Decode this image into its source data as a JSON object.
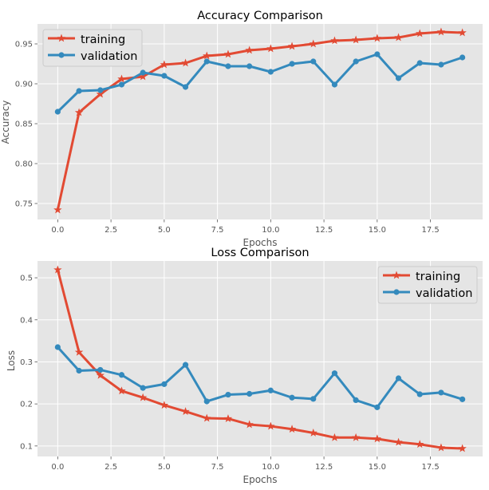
{
  "colors": {
    "training": "#e24a33",
    "validation": "#348abd"
  },
  "chart_data": [
    {
      "type": "line",
      "title": "Accuracy Comparison",
      "xlabel": "Epochs",
      "ylabel": "Accuracy",
      "xlim": [
        -0.95,
        19.95
      ],
      "ylim": [
        0.73,
        0.975
      ],
      "xticks": [
        0,
        2.5,
        5,
        7.5,
        10,
        12.5,
        15,
        17.5
      ],
      "xtick_labels": [
        "0.0",
        "2.5",
        "5.0",
        "7.5",
        "10.0",
        "12.5",
        "15.0",
        "17.5"
      ],
      "yticks": [
        0.75,
        0.8,
        0.85,
        0.9,
        0.95
      ],
      "ytick_labels": [
        "0.75",
        "0.80",
        "0.85",
        "0.90",
        "0.95"
      ],
      "grid": true,
      "legend_position": "upper-left",
      "x": [
        0,
        1,
        2,
        3,
        4,
        5,
        6,
        7,
        8,
        9,
        10,
        11,
        12,
        13,
        14,
        15,
        16,
        17,
        18,
        19
      ],
      "series": [
        {
          "name": "training",
          "marker": "star",
          "values": [
            0.742,
            0.864,
            0.887,
            0.906,
            0.909,
            0.924,
            0.926,
            0.935,
            0.937,
            0.942,
            0.944,
            0.947,
            0.95,
            0.954,
            0.955,
            0.957,
            0.958,
            0.963,
            0.965,
            0.964
          ]
        },
        {
          "name": "validation",
          "marker": "circle",
          "values": [
            0.865,
            0.891,
            0.892,
            0.899,
            0.914,
            0.91,
            0.896,
            0.928,
            0.922,
            0.922,
            0.915,
            0.925,
            0.928,
            0.899,
            0.928,
            0.937,
            0.907,
            0.926,
            0.924,
            0.933
          ]
        }
      ]
    },
    {
      "type": "line",
      "title": "Loss Comparison",
      "xlabel": "Epochs",
      "ylabel": "Loss",
      "xlim": [
        -0.95,
        19.95
      ],
      "ylim": [
        0.075,
        0.54
      ],
      "xticks": [
        0,
        2.5,
        5,
        7.5,
        10,
        12.5,
        15,
        17.5
      ],
      "xtick_labels": [
        "0.0",
        "2.5",
        "5.0",
        "7.5",
        "10.0",
        "12.5",
        "15.0",
        "17.5"
      ],
      "yticks": [
        0.1,
        0.2,
        0.3,
        0.4,
        0.5
      ],
      "ytick_labels": [
        "0.1",
        "0.2",
        "0.3",
        "0.4",
        "0.5"
      ],
      "grid": true,
      "legend_position": "upper-right",
      "x": [
        0,
        1,
        2,
        3,
        4,
        5,
        6,
        7,
        8,
        9,
        10,
        11,
        12,
        13,
        14,
        15,
        16,
        17,
        18,
        19
      ],
      "series": [
        {
          "name": "training",
          "marker": "star",
          "values": [
            0.519,
            0.323,
            0.268,
            0.231,
            0.215,
            0.197,
            0.182,
            0.166,
            0.165,
            0.151,
            0.147,
            0.14,
            0.131,
            0.12,
            0.12,
            0.117,
            0.109,
            0.104,
            0.096,
            0.094
          ]
        },
        {
          "name": "validation",
          "marker": "circle",
          "values": [
            0.335,
            0.279,
            0.281,
            0.269,
            0.238,
            0.247,
            0.293,
            0.206,
            0.222,
            0.224,
            0.232,
            0.215,
            0.212,
            0.273,
            0.209,
            0.192,
            0.261,
            0.223,
            0.227,
            0.211
          ]
        }
      ]
    }
  ]
}
